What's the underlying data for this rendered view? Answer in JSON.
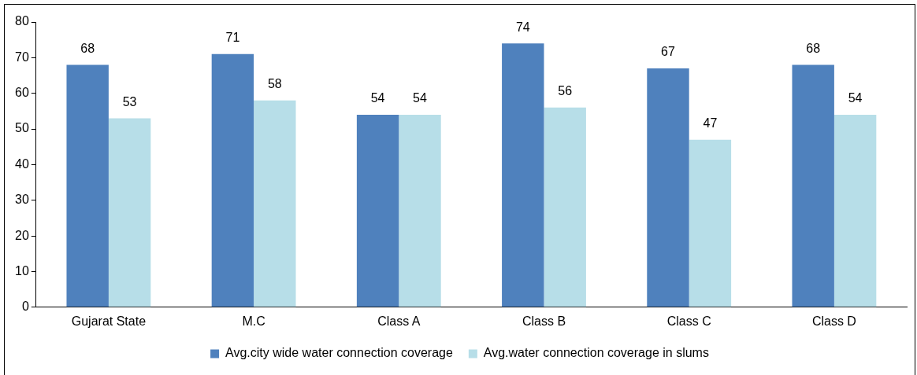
{
  "chart_data": {
    "type": "bar",
    "categories": [
      "Gujarat State",
      "M.C",
      "Class A",
      "Class B",
      "Class C",
      "Class D"
    ],
    "series": [
      {
        "name": "Avg.city wide water connection coverage",
        "color": "#4f81bd",
        "values": [
          68,
          71,
          54,
          74,
          67,
          68
        ]
      },
      {
        "name": "Avg.water connection coverage in slums",
        "color": "#b7dee8",
        "values": [
          53,
          58,
          54,
          56,
          47,
          54
        ]
      }
    ],
    "ylim": [
      0,
      80
    ],
    "yticks": [
      0,
      10,
      20,
      30,
      40,
      50,
      60,
      70,
      80
    ],
    "grid": false,
    "legend": "bottom",
    "data_labels": true
  }
}
